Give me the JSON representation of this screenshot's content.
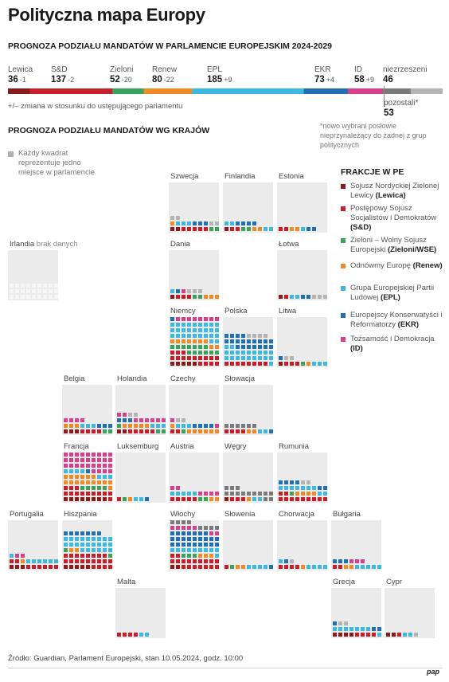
{
  "title": "Polityczna mapa Europy",
  "subtitle": "PROGNOZA PODZIAŁU MANDATÓW W PARLAMENCIE EUROPEJSKIM 2024-2029",
  "groups": [
    {
      "name": "Lewica",
      "value": "36",
      "change": "-1",
      "color": "#8b1a1a"
    },
    {
      "name": "S&D",
      "value": "137",
      "change": "-2",
      "color": "#c81e2a"
    },
    {
      "name": "Zieloni",
      "value": "52",
      "change": "-20",
      "color": "#3aa35b"
    },
    {
      "name": "Renew",
      "value": "80",
      "change": "-22",
      "color": "#f08a24"
    },
    {
      "name": "EPL",
      "value": "185",
      "change": "+9",
      "color": "#3db8e0"
    },
    {
      "name": "EKR",
      "value": "73",
      "change": "+4",
      "color": "#1f6fb2"
    },
    {
      "name": "ID",
      "value": "58",
      "change": "+9",
      "color": "#d83f8b"
    },
    {
      "name": "niezrzeszeni",
      "value": "46",
      "change": "",
      "color": "#7a7a7a"
    }
  ],
  "others": {
    "label": "pozostali*",
    "value": "53",
    "color": "#b4b4b4"
  },
  "note_change": "+/– zmiana w stosunku do ustępującego parlamentu",
  "note_others": "*nowo wybrani posłowie nieprzynależący do żadnej z grup politycznych",
  "section_title": "PROGNOZA PODZIAŁU MANDATÓW WG KRAJÓW",
  "legend_square": "Każdy kwadrat reprezentuje jedno miejsce w parlamencie",
  "key": {
    "title": "FRAKCJE W PE",
    "items": [
      {
        "text": "Sojusz Nordyckiej Zielonej Lewicy",
        "abbr": "(Lewica)",
        "color": "#8b1a1a"
      },
      {
        "text": "Postępowy Sojusz Socjalistów i Demokratów",
        "abbr": "(S&D)",
        "color": "#c81e2a"
      },
      {
        "text": "Zieloni – Wolny Sojusz Europejski",
        "abbr": "(Zieloni/WSE)",
        "color": "#3aa35b"
      },
      {
        "text": "Odnówmy Europę",
        "abbr": "(Renew)",
        "color": "#f08a24"
      },
      {
        "text": "Grupa Europejskiej Partii Ludowej",
        "abbr": "(EPL)",
        "color": "#3db8e0"
      },
      {
        "text": "Europejscy Konserwatyści i Reformatorzy",
        "abbr": "(EKR)",
        "color": "#1f6fb2"
      },
      {
        "text": "Tożsamość i Demokracja",
        "abbr": "(ID)",
        "color": "#d83f8b"
      }
    ]
  },
  "chart_data": {
    "type": "waffle",
    "group_order": [
      "Lewica",
      "S&D",
      "Zieloni",
      "Renew",
      "EPL",
      "EKR",
      "ID",
      "niezrzeszeni",
      "pozostali"
    ],
    "countries": [
      {
        "name": "Szwecja",
        "seats": {
          "Lewica": 2,
          "S&D": 5,
          "Zieloni": 2,
          "Renew": 1,
          "EPL": 3,
          "EKR": 3,
          "pozostali": 4
        }
      },
      {
        "name": "Finlandia",
        "seats": {
          "Lewica": 1,
          "S&D": 2,
          "Zieloni": 2,
          "Renew": 2,
          "EPL": 4,
          "EKR": 4
        }
      },
      {
        "name": "Estonia",
        "seats": {
          "S&D": 2,
          "Renew": 2,
          "EPL": 1,
          "EKR": 2
        }
      },
      {
        "name": "Irlandia",
        "nodata": "brak danych"
      },
      {
        "name": "Dania",
        "seats": {
          "Lewica": 1,
          "S&D": 3,
          "Zieloni": 2,
          "Renew": 3,
          "EPL": 1,
          "EKR": 1,
          "ID": 1,
          "pozostali": 3
        }
      },
      {
        "name": "Łotwa",
        "seats": {
          "Lewica": 1,
          "S&D": 1,
          "EPL": 2,
          "EKR": 2,
          "pozostali": 3
        }
      },
      {
        "name": "Niemcy",
        "seats": {
          "Lewica": 5,
          "S&D": 16,
          "Zieloni": 13,
          "Renew": 9,
          "EPL": 29,
          "EKR": 1,
          "ID": 19,
          "niezrzeszeni": 4,
          "pozostali": 0
        }
      },
      {
        "name": "Polska",
        "seats": {
          "S&D": 8,
          "EPL": 21,
          "EKR": 20,
          "pozostali": 4
        }
      },
      {
        "name": "Litwa",
        "seats": {
          "Lewica": 1,
          "S&D": 3,
          "Zieloni": 1,
          "Renew": 1,
          "EPL": 3,
          "EKR": 1,
          "pozostali": 2
        }
      },
      {
        "name": "Belgia",
        "seats": {
          "Lewica": 3,
          "S&D": 4,
          "Zieloni": 2,
          "Renew": 3,
          "EPL": 3,
          "EKR": 3,
          "ID": 4
        }
      },
      {
        "name": "Holandia",
        "seats": {
          "Lewica": 2,
          "S&D": 5,
          "Zieloni": 3,
          "Renew": 5,
          "EPL": 3,
          "EKR": 3,
          "ID": 8,
          "pozostali": 2
        }
      },
      {
        "name": "Czechy",
        "seats": {
          "S&D": 2,
          "Zieloni": 1,
          "Renew": 7,
          "EPL": 3,
          "EKR": 4,
          "ID": 2,
          "pozostali": 2
        }
      },
      {
        "name": "Słowacja",
        "seats": {
          "S&D": 4,
          "Renew": 2,
          "EPL": 2,
          "EKR": 1,
          "niezrzeszeni": 6
        }
      },
      {
        "name": "Francja",
        "seats": {
          "Lewica": 8,
          "S&D": 13,
          "Zieloni": 5,
          "Renew": 16,
          "EPL": 7,
          "EKR": 1,
          "ID": 31
        }
      },
      {
        "name": "Luksemburg",
        "seats": {
          "S&D": 1,
          "Zieloni": 1,
          "Renew": 1,
          "EPL": 2,
          "EKR": 1
        }
      },
      {
        "name": "Austria",
        "seats": {
          "S&D": 5,
          "Zieloni": 2,
          "Renew": 2,
          "EPL": 5,
          "ID": 6
        }
      },
      {
        "name": "Węgry",
        "seats": {
          "Lewica": 1,
          "S&D": 3,
          "Renew": 1,
          "EPL": 2,
          "niezrzeszeni": 14
        }
      },
      {
        "name": "Rumunia",
        "seats": {
          "S&D": 11,
          "Zieloni": 1,
          "Renew": 4,
          "EPL": 9,
          "EKR": 6,
          "pozostali": 2
        }
      },
      {
        "name": "Portugalia",
        "seats": {
          "Lewica": 3,
          "S&D": 8,
          "Renew": 1,
          "EPL": 7,
          "ID": 2
        }
      },
      {
        "name": "Hiszpania",
        "seats": {
          "Lewica": 5,
          "S&D": 21,
          "Zieloni": 2,
          "Renew": 2,
          "EPL": 24,
          "EKR": 7
        }
      },
      {
        "name": "Włochy",
        "seats": {
          "Lewica": 2,
          "S&D": 18,
          "Zieloni": 3,
          "Renew": 3,
          "EPL": 10,
          "EKR": 25,
          "ID": 7,
          "niezrzeszeni": 8
        }
      },
      {
        "name": "Słowenia",
        "seats": {
          "S&D": 1,
          "Zieloni": 1,
          "Renew": 2,
          "EPL": 4,
          "EKR": 1
        }
      },
      {
        "name": "Chorwacja",
        "seats": {
          "S&D": 4,
          "Renew": 1,
          "EPL": 5,
          "EKR": 1,
          "pozostali": 1
        }
      },
      {
        "name": "Bułgaria",
        "seats": {
          "S&D": 2,
          "Renew": 2,
          "EPL": 5,
          "EKR": 3,
          "ID": 3
        }
      },
      {
        "name": "Malta",
        "seats": {
          "S&D": 4,
          "EPL": 2
        }
      },
      {
        "name": "Grecja",
        "seats": {
          "Lewica": 4,
          "S&D": 4,
          "EPL": 8,
          "EKR": 3,
          "pozostali": 2
        }
      },
      {
        "name": "Cypr",
        "seats": {
          "Lewica": 2,
          "S&D": 1,
          "EPL": 2,
          "pozostali": 1
        }
      }
    ]
  },
  "source": "Źródło: Guardian, Parlament Europejski, stan 10.05.2024, godz. 10:00",
  "logo": "pap"
}
